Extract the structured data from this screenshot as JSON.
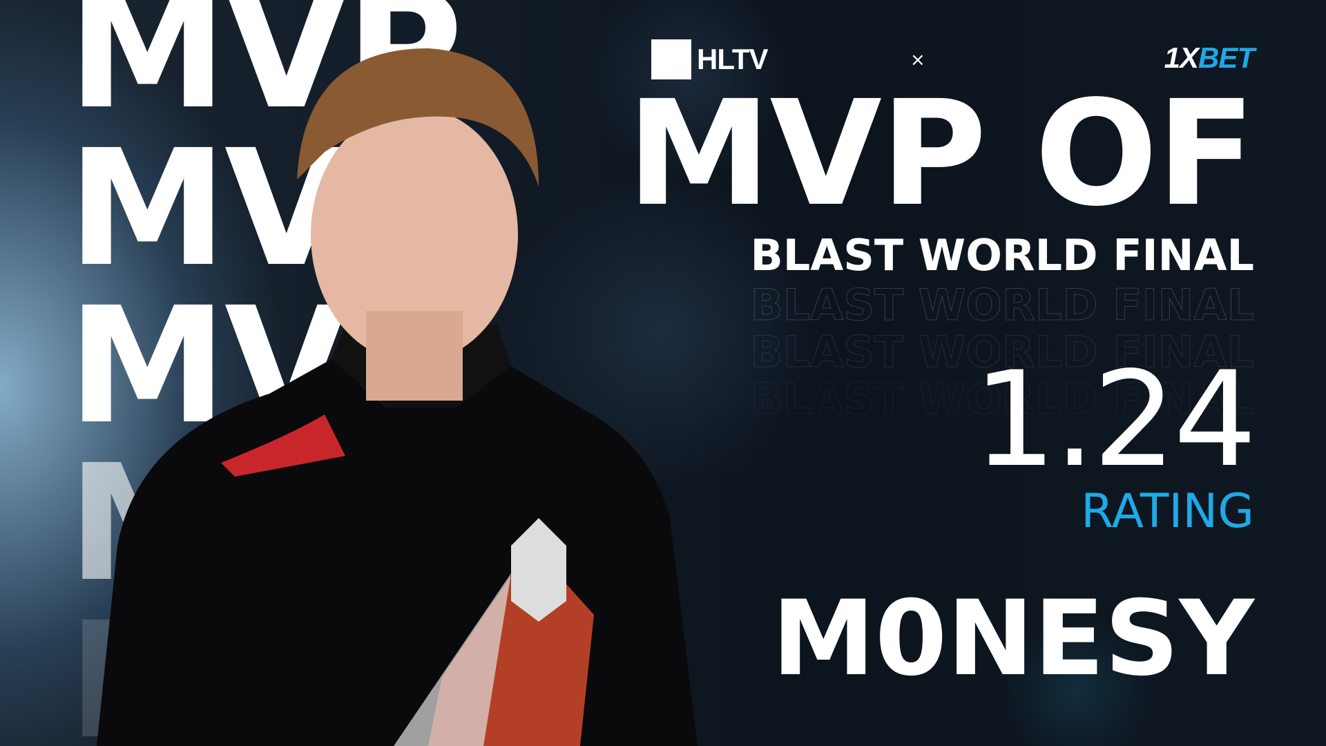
{
  "background_word": "MVP",
  "branding": {
    "hltv": "HLTV",
    "separator": "×",
    "sponsor_prefix": "1X",
    "sponsor_suffix": "BET"
  },
  "headline": "MVP OF",
  "event": "BLAST WORLD FINAL",
  "rating": {
    "value": "1.24",
    "label": "RATING"
  },
  "player": "M0NESY",
  "colors": {
    "accent": "#1fa9e6",
    "background": "#0c141d"
  }
}
